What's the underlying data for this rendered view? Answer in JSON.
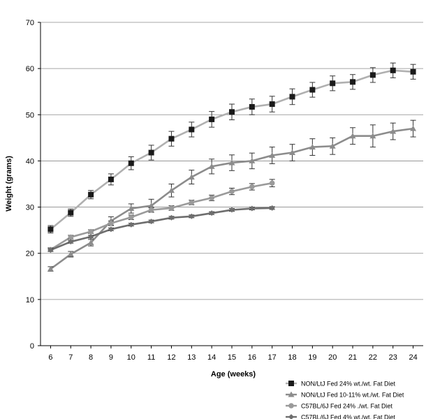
{
  "chart_data": {
    "type": "line",
    "xlabel": "Age (weeks)",
    "ylabel": "Weight (grams)",
    "ylim": [
      0,
      70
    ],
    "y_ticks": [
      0,
      10,
      20,
      30,
      40,
      50,
      60,
      70
    ],
    "x_ticks": [
      6,
      7,
      8,
      9,
      10,
      11,
      12,
      13,
      14,
      15,
      16,
      17,
      18,
      19,
      20,
      21,
      22,
      23,
      24
    ],
    "grid": "horizontal",
    "legend_position": "bottom-right",
    "series": [
      {
        "name": "NON/LtJ Fed 24% wt./wt. Fat Diet",
        "color": "#b0b0b0",
        "marker": "square",
        "x": [
          6,
          7,
          8,
          9,
          10,
          11,
          12,
          13,
          14,
          15,
          16,
          17,
          18,
          19,
          20,
          21,
          22,
          23,
          24
        ],
        "values": [
          25.2,
          28.8,
          32.7,
          36.0,
          39.5,
          41.8,
          44.8,
          46.8,
          49.0,
          50.6,
          51.7,
          52.3,
          53.9,
          55.4,
          56.8,
          57.1,
          58.6,
          59.6,
          59.3
        ],
        "errors": [
          0.8,
          0.8,
          0.9,
          1.2,
          1.4,
          1.6,
          1.6,
          1.6,
          1.7,
          1.7,
          1.7,
          1.7,
          1.7,
          1.6,
          1.6,
          1.6,
          1.6,
          1.6,
          1.6
        ]
      },
      {
        "name": "NON/LtJ Fed 10-11% wt./wt. Fat Diet",
        "color": "#8c8c8c",
        "marker": "triangle",
        "x": [
          6,
          7,
          8,
          9,
          10,
          11,
          12,
          13,
          14,
          15,
          16,
          17,
          18,
          19,
          20,
          21,
          22,
          23,
          24
        ],
        "values": [
          16.6,
          19.8,
          22.3,
          27.0,
          29.7,
          30.3,
          33.6,
          36.5,
          38.8,
          39.6,
          40.0,
          41.2,
          41.8,
          43.0,
          43.2,
          45.4,
          45.4,
          46.4,
          47.0
        ],
        "errors": [
          0.5,
          0.6,
          0.7,
          0.9,
          1.0,
          1.4,
          1.4,
          1.5,
          1.6,
          1.7,
          1.7,
          1.8,
          1.8,
          1.8,
          1.8,
          1.8,
          2.4,
          1.8,
          1.8
        ]
      },
      {
        "name": "C57BL/6J Fed 24%  ./wt. Fat Diet",
        "color": "#9a9a9a",
        "marker": "circle",
        "x": [
          6,
          7,
          8,
          9,
          10,
          11,
          12,
          13,
          14,
          15,
          16,
          17
        ],
        "values": [
          20.8,
          23.5,
          24.7,
          26.5,
          27.8,
          29.4,
          29.8,
          31.0,
          32.0,
          33.4,
          34.4,
          35.2
        ],
        "errors": [
          0.4,
          0.4,
          0.4,
          0.5,
          0.5,
          0.5,
          0.5,
          0.5,
          0.6,
          0.7,
          0.7,
          0.8
        ]
      },
      {
        "name": "C57BL/6J Fed 4% wt./wt. Fat Diet",
        "color": "#6e6e6e",
        "marker": "diamond",
        "x": [
          6,
          7,
          8,
          9,
          10,
          11,
          12,
          13,
          14,
          15,
          16,
          17
        ],
        "values": [
          20.7,
          22.5,
          23.6,
          25.2,
          26.2,
          26.9,
          27.7,
          28.0,
          28.7,
          29.4,
          29.7,
          29.8
        ],
        "errors": [
          0.3,
          0.3,
          0.3,
          0.3,
          0.3,
          0.3,
          0.3,
          0.3,
          0.3,
          0.3,
          0.3,
          0.3
        ]
      }
    ]
  }
}
